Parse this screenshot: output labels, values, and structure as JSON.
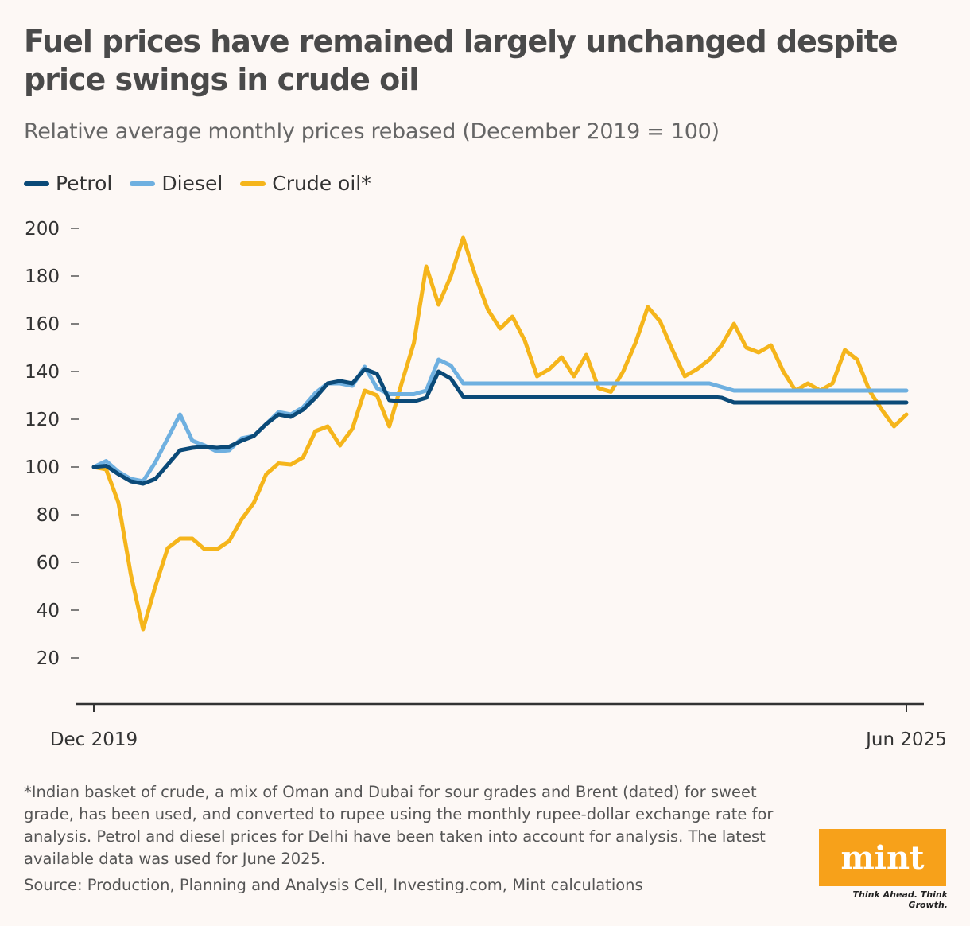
{
  "title": "Fuel prices have remained largely unchanged despite price swings in crude oil",
  "subtitle": "Relative average monthly prices rebased (December 2019 = 100)",
  "legend": [
    {
      "name": "Petrol",
      "color": "#0b4a78"
    },
    {
      "name": "Diesel",
      "color": "#6fb0e0"
    },
    {
      "name": "Crude oil*",
      "color": "#f5b51b"
    }
  ],
  "footnote": "*Indian basket of crude, a mix of Oman and Dubai for sour grades and Brent (dated) for sweet grade, has been used, and converted to rupee using the monthly rupee-dollar exchange rate for analysis. Petrol and diesel prices for Delhi have been taken into account for analysis. The latest available data was used for June 2025.",
  "source": "Source: Production, Planning and Analysis Cell, Investing.com, Mint calculations",
  "logo": {
    "text": "mint",
    "tagline": "Think Ahead. Think Growth."
  },
  "chart_data": {
    "type": "line",
    "title": "Fuel prices have remained largely unchanged despite price swings in crude oil",
    "ylabel": "",
    "xlabel": "",
    "ylim": [
      0,
      205
    ],
    "yticks": [
      20,
      40,
      60,
      80,
      100,
      120,
      140,
      160,
      180,
      200
    ],
    "x_tick_labels": [
      {
        "index": 0,
        "label": "Dec 2019"
      },
      {
        "index": 66,
        "label": "Jun 2025"
      }
    ],
    "n_points": 67,
    "series": [
      {
        "name": "Petrol",
        "color": "#0b4a78",
        "width": 5,
        "points": [
          [
            0,
            100
          ],
          [
            1,
            100.5
          ],
          [
            2,
            97
          ],
          [
            3,
            94
          ],
          [
            4,
            93
          ],
          [
            5,
            95
          ],
          [
            6,
            101
          ],
          [
            7,
            107
          ],
          [
            8,
            108
          ],
          [
            9,
            108.5
          ],
          [
            10,
            108
          ],
          [
            11,
            108.5
          ],
          [
            12,
            111
          ],
          [
            13,
            113
          ],
          [
            14,
            118
          ],
          [
            15,
            122
          ],
          [
            16,
            121
          ],
          [
            17,
            124
          ],
          [
            18,
            129
          ],
          [
            19,
            135
          ],
          [
            20,
            136
          ],
          [
            21,
            135
          ],
          [
            22,
            141
          ],
          [
            23,
            139
          ],
          [
            24,
            128
          ],
          [
            25,
            127.5
          ],
          [
            26,
            127.5
          ],
          [
            27,
            129
          ],
          [
            28,
            140
          ],
          [
            29,
            137
          ],
          [
            30,
            129.5
          ],
          [
            41,
            129.5
          ],
          [
            50,
            129.5
          ],
          [
            51,
            129
          ],
          [
            52,
            127
          ],
          [
            56,
            127
          ],
          [
            57,
            127
          ],
          [
            66,
            127
          ]
        ]
      },
      {
        "name": "Diesel",
        "color": "#6fb0e0",
        "width": 5,
        "points": [
          [
            0,
            100
          ],
          [
            1,
            102.5
          ],
          [
            2,
            98
          ],
          [
            3,
            95
          ],
          [
            4,
            94
          ],
          [
            5,
            102
          ],
          [
            6,
            112
          ],
          [
            7,
            122
          ],
          [
            8,
            111
          ],
          [
            9,
            109
          ],
          [
            10,
            106.5
          ],
          [
            11,
            107
          ],
          [
            12,
            112
          ],
          [
            13,
            113
          ],
          [
            14,
            118
          ],
          [
            15,
            123
          ],
          [
            16,
            122
          ],
          [
            17,
            125
          ],
          [
            18,
            131
          ],
          [
            19,
            135
          ],
          [
            20,
            135
          ],
          [
            21,
            134
          ],
          [
            22,
            142
          ],
          [
            23,
            133
          ],
          [
            24,
            130.5
          ],
          [
            25,
            130.5
          ],
          [
            26,
            130.5
          ],
          [
            27,
            132
          ],
          [
            28,
            145
          ],
          [
            29,
            142.5
          ],
          [
            30,
            135
          ],
          [
            50,
            135
          ],
          [
            51,
            133.5
          ],
          [
            52,
            132
          ],
          [
            66,
            132
          ]
        ]
      },
      {
        "name": "Crude oil*",
        "color": "#f5b51b",
        "width": 5,
        "points": [
          [
            0,
            100
          ],
          [
            1,
            99
          ],
          [
            2,
            85
          ],
          [
            3,
            55
          ],
          [
            4,
            32
          ],
          [
            5,
            50
          ],
          [
            6,
            66
          ],
          [
            7,
            70
          ],
          [
            8,
            70
          ],
          [
            9,
            65.5
          ],
          [
            10,
            65.5
          ],
          [
            11,
            69
          ],
          [
            12,
            78
          ],
          [
            13,
            85
          ],
          [
            14,
            97
          ],
          [
            15,
            101.5
          ],
          [
            16,
            101
          ],
          [
            17,
            104
          ],
          [
            18,
            115
          ],
          [
            19,
            117
          ],
          [
            20,
            109
          ],
          [
            21,
            116
          ],
          [
            22,
            132
          ],
          [
            23,
            130
          ],
          [
            24,
            117
          ],
          [
            25,
            135
          ],
          [
            26,
            152
          ],
          [
            27,
            184
          ],
          [
            28,
            168
          ],
          [
            29,
            180
          ],
          [
            30,
            196
          ],
          [
            31,
            180
          ],
          [
            32,
            166
          ],
          [
            33,
            158
          ],
          [
            34,
            163
          ],
          [
            35,
            153
          ],
          [
            36,
            138
          ],
          [
            37,
            141
          ],
          [
            38,
            146
          ],
          [
            39,
            138
          ],
          [
            40,
            147
          ],
          [
            41,
            133
          ],
          [
            42,
            131.5
          ],
          [
            43,
            140
          ],
          [
            44,
            152
          ],
          [
            45,
            167
          ],
          [
            46,
            161
          ],
          [
            47,
            149
          ],
          [
            48,
            138
          ],
          [
            49,
            141
          ],
          [
            50,
            145
          ],
          [
            51,
            151
          ],
          [
            52,
            160
          ],
          [
            53,
            150
          ],
          [
            54,
            148
          ],
          [
            55,
            151
          ],
          [
            56,
            140
          ],
          [
            57,
            132
          ],
          [
            58,
            135
          ],
          [
            59,
            132
          ],
          [
            60,
            135
          ],
          [
            61,
            149
          ],
          [
            62,
            145
          ],
          [
            63,
            132
          ],
          [
            64,
            124
          ],
          [
            65,
            117
          ],
          [
            66,
            122
          ]
        ]
      }
    ]
  }
}
